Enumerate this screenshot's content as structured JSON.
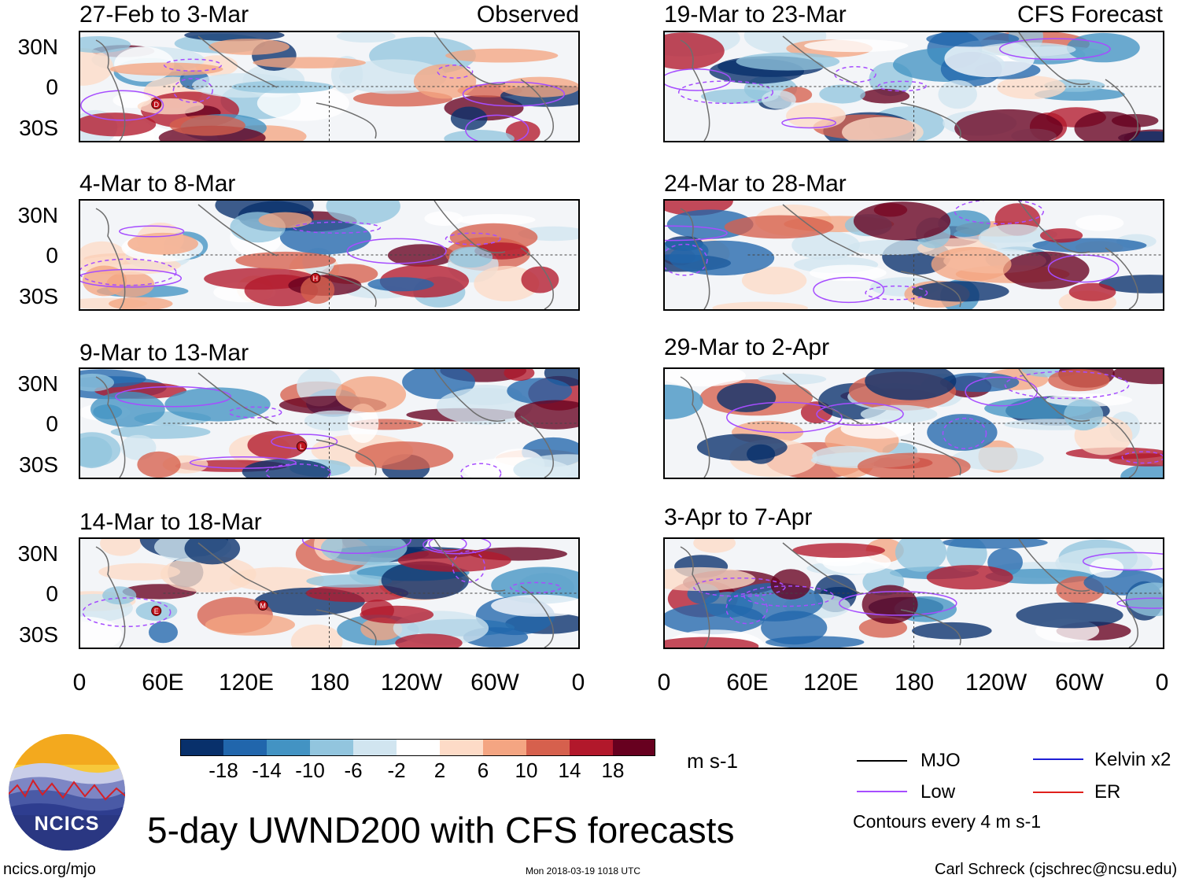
{
  "panels": [
    {
      "title": "27-Feb to 3-Mar",
      "label": "Observed",
      "markers": [
        {
          "letter": "D",
          "lon": 55,
          "lat": -13
        }
      ]
    },
    {
      "title": "4-Mar to 8-Mar",
      "label": "",
      "markers": [
        {
          "letter": "H",
          "lon": 170,
          "lat": -17
        }
      ]
    },
    {
      "title": "9-Mar to 13-Mar",
      "label": "",
      "markers": [
        {
          "letter": "L",
          "lon": 160,
          "lat": -17
        }
      ]
    },
    {
      "title": "14-Mar to 18-Mar",
      "label": "",
      "markers": [
        {
          "letter": "E",
          "lon": 55,
          "lat": -13
        },
        {
          "letter": "M",
          "lon": 132,
          "lat": -9
        }
      ]
    },
    {
      "title": "19-Mar to 23-Mar",
      "label": "CFS Forecast",
      "markers": []
    },
    {
      "title": "24-Mar to 28-Mar",
      "label": "",
      "markers": []
    },
    {
      "title": "29-Mar to 2-Apr",
      "label": "",
      "markers": []
    },
    {
      "title": "3-Apr to 7-Apr",
      "label": "",
      "markers": []
    }
  ],
  "lat_labels": [
    "30N",
    "0",
    "30S"
  ],
  "lon_labels": [
    "0",
    "60E",
    "120E",
    "180",
    "120W",
    "60W",
    "0"
  ],
  "colorbar": {
    "colors": [
      "#08306b",
      "#2166ac",
      "#4393c3",
      "#92c5de",
      "#d1e5f0",
      "#ffffff",
      "#fddbc7",
      "#f4a582",
      "#d6604d",
      "#b2182b",
      "#67001f"
    ],
    "ticks": [
      "-18",
      "-14",
      "-10",
      "-6",
      "-2",
      "2",
      "6",
      "10",
      "14",
      "18"
    ],
    "units": "m s-1"
  },
  "legend": {
    "items": [
      {
        "label": "MJO",
        "color": "#000000"
      },
      {
        "label": "Kelvin x2",
        "color": "#1f1fd6"
      },
      {
        "label": "Low",
        "color": "#a64dff"
      },
      {
        "label": "ER",
        "color": "#e0201b"
      }
    ],
    "note": "Contours every 4 m s-1"
  },
  "main_title": "5-day UWND200 with CFS forecasts",
  "logo_text": "NCICS",
  "footer": {
    "left": "ncics.org/mjo",
    "center": "Mon 2018-03-19 1018 UTC",
    "right": "Carl Schreck (cjschrec@ncsu.edu)"
  }
}
